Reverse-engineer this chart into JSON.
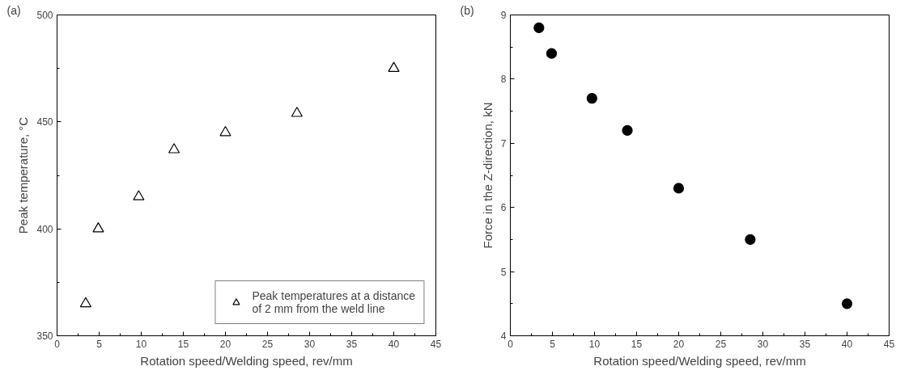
{
  "chart_data": [
    {
      "type": "scatter",
      "xlabel": "Rotation speed/Welding speed, rev/mm",
      "ylabel": "Peak temperature, °C",
      "annotations": [
        "(a)"
      ],
      "x": [
        3.4,
        4.9,
        9.7,
        13.9,
        20,
        28.5,
        40
      ],
      "series": [
        {
          "name": "Peak temperatures at a distance of 2 mm from the weld line",
          "color": "#000000",
          "values": [
            365,
            400,
            415,
            437,
            445,
            454,
            475
          ]
        }
      ],
      "marker": "triangle",
      "xlim": [
        0,
        45
      ],
      "ylim": [
        350,
        500
      ],
      "xticks": [
        0,
        5,
        10,
        15,
        20,
        25,
        30,
        35,
        40,
        45
      ],
      "yticks": [
        350,
        400,
        450,
        500
      ],
      "grid": false,
      "legend": "bottom right"
    },
    {
      "type": "scatter",
      "xlabel": "Rotation speed/Welding speed, rev/mm",
      "ylabel": "Force in the Z-direction, kN",
      "annotations": [
        "(b)"
      ],
      "x": [
        3.4,
        4.9,
        9.7,
        13.9,
        20,
        28.5,
        40
      ],
      "series": [
        {
          "color": "#000000",
          "values": [
            8.8,
            8.4,
            7.7,
            7.2,
            6.3,
            5.5,
            4.5
          ]
        }
      ],
      "marker": "circle",
      "xlim": [
        0,
        45
      ],
      "ylim": [
        4,
        9
      ],
      "xticks": [
        0,
        5,
        10,
        15,
        20,
        25,
        30,
        35,
        40,
        45
      ],
      "yticks": [
        4,
        5,
        6,
        7,
        8,
        9
      ],
      "grid": false
    }
  ]
}
